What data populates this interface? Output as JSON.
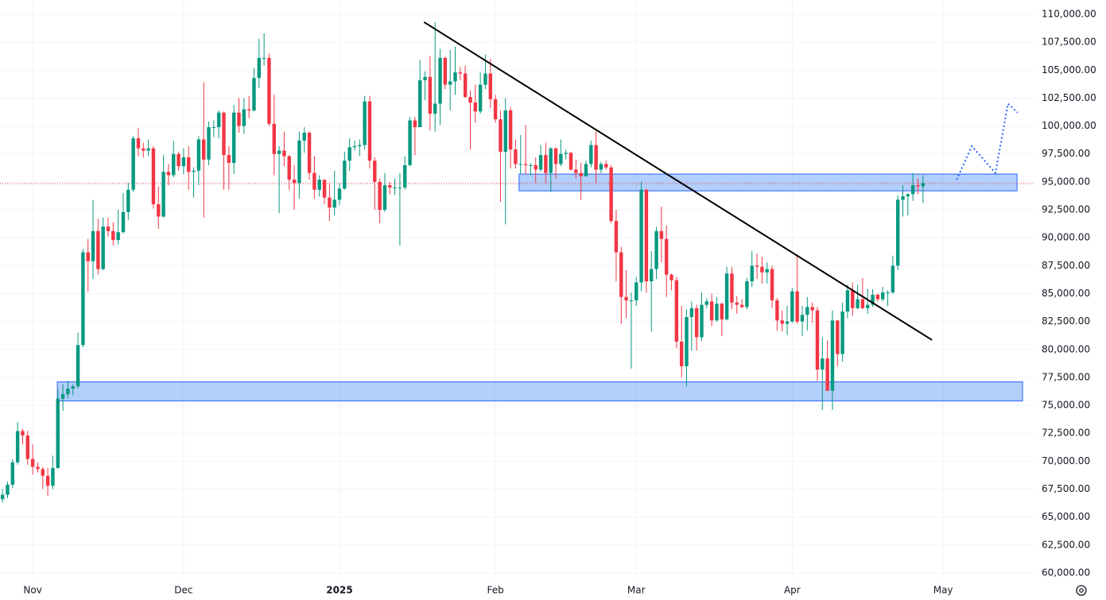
{
  "chart_data": {
    "type": "candlestick",
    "up_color": "#089981",
    "down_color": "#f23645",
    "xlim": [
      -0.5,
      205
    ],
    "ylim": [
      59500,
      111280
    ],
    "grid": true,
    "xticks": [
      {
        "value": 6,
        "label": "Nov"
      },
      {
        "value": 36,
        "label": "Dec"
      },
      {
        "value": 67,
        "label": "2025"
      },
      {
        "value": 98,
        "label": "Feb"
      },
      {
        "value": 126,
        "label": "Mar"
      },
      {
        "value": 157,
        "label": "Apr"
      },
      {
        "value": 187,
        "label": "May"
      }
    ],
    "yticks": [
      {
        "value": 60000,
        "label": "60,000.00"
      },
      {
        "value": 62500,
        "label": "62,500.00"
      },
      {
        "value": 65000,
        "label": "65,000.00"
      },
      {
        "value": 67500,
        "label": "67,500.00"
      },
      {
        "value": 70000,
        "label": "70,000.00"
      },
      {
        "value": 72500,
        "label": "72,500.00"
      },
      {
        "value": 75000,
        "label": "75,000.00"
      },
      {
        "value": 77500,
        "label": "77,500.00"
      },
      {
        "value": 80000,
        "label": "80,000.00"
      },
      {
        "value": 82500,
        "label": "82,500.00"
      },
      {
        "value": 85000,
        "label": "85,000.00"
      },
      {
        "value": 87500,
        "label": "87,500.00"
      },
      {
        "value": 90000,
        "label": "90,000.00"
      },
      {
        "value": 92500,
        "label": "92,500.00"
      },
      {
        "value": 95000,
        "label": "95,000.00"
      },
      {
        "value": 97500,
        "label": "97,500.00"
      },
      {
        "value": 100000,
        "label": "100,000.00"
      },
      {
        "value": 102500,
        "label": "102,500.00"
      },
      {
        "value": 105000,
        "label": "105,000.00"
      },
      {
        "value": 107500,
        "label": "107,500.00"
      },
      {
        "value": 110000,
        "label": "110,000.00"
      }
    ],
    "ohlc": [
      [
        66600,
        67500,
        66300,
        67000
      ],
      [
        67000,
        68200,
        66700,
        67900
      ],
      [
        67900,
        70200,
        67600,
        69900
      ],
      [
        69900,
        73500,
        69700,
        72700
      ],
      [
        72700,
        72900,
        71500,
        72300
      ],
      [
        72300,
        72700,
        69700,
        70200
      ],
      [
        70200,
        71500,
        68800,
        69500
      ],
      [
        69500,
        69900,
        69000,
        69300
      ],
      [
        69300,
        69500,
        67500,
        68700
      ],
      [
        68700,
        69400,
        66900,
        67800
      ],
      [
        67800,
        70500,
        67500,
        69400
      ],
      [
        69400,
        76400,
        69300,
        75600
      ],
      [
        75600,
        76900,
        74500,
        76000
      ],
      [
        76000,
        77200,
        75600,
        76500
      ],
      [
        76500,
        76900,
        75900,
        76700
      ],
      [
        76700,
        81500,
        76500,
        80400
      ],
      [
        80400,
        89000,
        80200,
        88700
      ],
      [
        88700,
        89900,
        85200,
        87900
      ],
      [
        87900,
        93400,
        86300,
        90600
      ],
      [
        90600,
        91700,
        86700,
        87200
      ],
      [
        87200,
        91800,
        87100,
        91000
      ],
      [
        91000,
        91800,
        90100,
        90600
      ],
      [
        90600,
        91400,
        89300,
        89800
      ],
      [
        89800,
        92500,
        89400,
        90500
      ],
      [
        90500,
        94000,
        90400,
        92300
      ],
      [
        92300,
        94900,
        91600,
        94300
      ],
      [
        94300,
        99100,
        94100,
        98900
      ],
      [
        98900,
        99800,
        97300,
        98000
      ],
      [
        98000,
        98500,
        97200,
        97800
      ],
      [
        97800,
        98800,
        97300,
        98000
      ],
      [
        98000,
        98200,
        92600,
        93000
      ],
      [
        93000,
        94600,
        90800,
        91900
      ],
      [
        91900,
        97400,
        91800,
        95900
      ],
      [
        95900,
        96600,
        94700,
        95600
      ],
      [
        95600,
        98700,
        95400,
        97500
      ],
      [
        97500,
        97700,
        96000,
        96400
      ],
      [
        96400,
        98000,
        95700,
        97200
      ],
      [
        97200,
        98200,
        94300,
        95900
      ],
      [
        95900,
        96300,
        93600,
        96000
      ],
      [
        96000,
        99100,
        94700,
        98800
      ],
      [
        98800,
        103900,
        91800,
        97000
      ],
      [
        97000,
        100400,
        96500,
        99900
      ],
      [
        99900,
        100500,
        99000,
        99900
      ],
      [
        99900,
        101400,
        98900,
        101200
      ],
      [
        101200,
        101300,
        94300,
        97400
      ],
      [
        97400,
        98200,
        94300,
        96700
      ],
      [
        96700,
        101900,
        95700,
        101200
      ],
      [
        101200,
        102500,
        99400,
        100000
      ],
      [
        100000,
        102500,
        99300,
        101500
      ],
      [
        101500,
        102700,
        100700,
        101400
      ],
      [
        101400,
        105200,
        101300,
        104300
      ],
      [
        104300,
        107800,
        103400,
        106100
      ],
      [
        106100,
        108300,
        105400,
        106100
      ],
      [
        106100,
        106500,
        100000,
        100200
      ],
      [
        100200,
        102800,
        95600,
        97500
      ],
      [
        97500,
        98200,
        92200,
        97800
      ],
      [
        97800,
        99500,
        96400,
        97300
      ],
      [
        97300,
        97400,
        94300,
        95200
      ],
      [
        95200,
        96500,
        92500,
        94900
      ],
      [
        94900,
        99500,
        93500,
        98700
      ],
      [
        98700,
        99900,
        97600,
        99400
      ],
      [
        99400,
        99500,
        95200,
        95800
      ],
      [
        95800,
        97300,
        93500,
        94300
      ],
      [
        94300,
        95600,
        93700,
        95200
      ],
      [
        95200,
        95200,
        93000,
        93600
      ],
      [
        93600,
        94900,
        91500,
        92700
      ],
      [
        92700,
        96000,
        92000,
        93400
      ],
      [
        93400,
        94900,
        92900,
        94400
      ],
      [
        94400,
        97700,
        94300,
        96900
      ],
      [
        96900,
        98900,
        96000,
        98100
      ],
      [
        98100,
        98700,
        97800,
        98200
      ],
      [
        98200,
        98800,
        97300,
        98300
      ],
      [
        98300,
        102700,
        97900,
        102200
      ],
      [
        102200,
        102700,
        96200,
        96900
      ],
      [
        96900,
        97200,
        92500,
        95000
      ],
      [
        95000,
        95300,
        91300,
        92500
      ],
      [
        92500,
        95800,
        92300,
        94700
      ],
      [
        94700,
        95000,
        93900,
        94500
      ],
      [
        94500,
        95300,
        93800,
        94500
      ],
      [
        94500,
        95800,
        89300,
        94500
      ],
      [
        94500,
        97300,
        94300,
        96500
      ],
      [
        96500,
        100800,
        96400,
        100500
      ],
      [
        100500,
        100800,
        97400,
        99900
      ],
      [
        99900,
        105900,
        99900,
        104100
      ],
      [
        104100,
        104900,
        102300,
        104400
      ],
      [
        104400,
        106300,
        99600,
        101100
      ],
      [
        101100,
        109300,
        99500,
        102000
      ],
      [
        102000,
        106900,
        100100,
        106100
      ],
      [
        106100,
        106200,
        103300,
        103700
      ],
      [
        103700,
        106800,
        101400,
        104000
      ],
      [
        104000,
        107100,
        102800,
        104800
      ],
      [
        104800,
        105300,
        104100,
        104700
      ],
      [
        104700,
        105400,
        102500,
        102600
      ],
      [
        102600,
        103200,
        97900,
        102100
      ],
      [
        102100,
        103700,
        100300,
        101300
      ],
      [
        101300,
        104800,
        101100,
        103700
      ],
      [
        103700,
        106400,
        103300,
        104700
      ],
      [
        104700,
        106000,
        101600,
        102400
      ],
      [
        102400,
        102800,
        100300,
        100600
      ],
      [
        100600,
        101400,
        93200,
        97700
      ],
      [
        97700,
        102500,
        91200,
        101400
      ],
      [
        101400,
        101700,
        96200,
        97900
      ],
      [
        97900,
        98800,
        96200,
        96600
      ],
      [
        96600,
        99200,
        95700,
        96600
      ],
      [
        96600,
        100100,
        95700,
        96500
      ],
      [
        96500,
        96700,
        95600,
        96500
      ],
      [
        96500,
        97200,
        94900,
        96100
      ],
      [
        96100,
        98300,
        95900,
        97400
      ],
      [
        97400,
        98500,
        94900,
        95800
      ],
      [
        95800,
        98100,
        94100,
        98000
      ],
      [
        98000,
        98100,
        95300,
        96600
      ],
      [
        96600,
        98800,
        96400,
        97500
      ],
      [
        97500,
        97900,
        97000,
        97600
      ],
      [
        97600,
        97700,
        96000,
        96100
      ],
      [
        96100,
        97000,
        95300,
        95800
      ],
      [
        95800,
        96700,
        93400,
        95500
      ],
      [
        95500,
        96900,
        95500,
        96600
      ],
      [
        96600,
        98700,
        96300,
        98300
      ],
      [
        98300,
        99500,
        94900,
        96100
      ],
      [
        96100,
        96800,
        95800,
        96600
      ],
      [
        96600,
        96900,
        96100,
        96300
      ],
      [
        96300,
        96500,
        91300,
        91500
      ],
      [
        91500,
        92500,
        86100,
        88700
      ],
      [
        88700,
        89200,
        82300,
        84700
      ],
      [
        84700,
        87100,
        82800,
        84400
      ],
      [
        84400,
        85100,
        78300,
        84400
      ],
      [
        84400,
        86500,
        83900,
        86000
      ],
      [
        86000,
        95000,
        85200,
        94300
      ],
      [
        94300,
        94400,
        85100,
        86100
      ],
      [
        86100,
        88800,
        81600,
        87200
      ],
      [
        87200,
        91000,
        86300,
        90600
      ],
      [
        90600,
        92800,
        87800,
        89900
      ],
      [
        89900,
        91100,
        84700,
        86700
      ],
      [
        86700,
        86800,
        85300,
        86200
      ],
      [
        86200,
        86500,
        80100,
        80700
      ],
      [
        80700,
        83900,
        77500,
        78500
      ],
      [
        78500,
        83600,
        76700,
        82900
      ],
      [
        82900,
        84300,
        79900,
        83700
      ],
      [
        83700,
        84000,
        79900,
        81100
      ],
      [
        81100,
        85100,
        80800,
        84000
      ],
      [
        84000,
        84600,
        83700,
        84300
      ],
      [
        84300,
        85000,
        82100,
        82600
      ],
      [
        82600,
        84700,
        82500,
        84100
      ],
      [
        84100,
        84200,
        81200,
        82700
      ],
      [
        82700,
        87400,
        82600,
        86800
      ],
      [
        86800,
        87400,
        83600,
        84200
      ],
      [
        84200,
        84800,
        83200,
        84000
      ],
      [
        84000,
        84500,
        83700,
        83800
      ],
      [
        83800,
        86400,
        83600,
        86100
      ],
      [
        86100,
        88800,
        85600,
        87500
      ],
      [
        87500,
        88600,
        86300,
        87400
      ],
      [
        87400,
        88300,
        85900,
        86900
      ],
      [
        86900,
        87800,
        85900,
        87200
      ],
      [
        87200,
        87500,
        83700,
        84400
      ],
      [
        84400,
        84600,
        81700,
        82600
      ],
      [
        82600,
        83500,
        81600,
        82300
      ],
      [
        82300,
        83900,
        81300,
        82500
      ],
      [
        82500,
        85500,
        82400,
        85200
      ],
      [
        85200,
        88500,
        82300,
        82500
      ],
      [
        82500,
        83900,
        81200,
        83100
      ],
      [
        83100,
        84700,
        81700,
        83800
      ],
      [
        83800,
        84200,
        82400,
        83500
      ],
      [
        83500,
        83800,
        77200,
        78200
      ],
      [
        78200,
        81100,
        74600,
        79200
      ],
      [
        79200,
        80800,
        76300,
        76300
      ],
      [
        76300,
        83500,
        74600,
        82600
      ],
      [
        82600,
        82600,
        78500,
        79600
      ],
      [
        79600,
        84200,
        78900,
        83400
      ],
      [
        83400,
        85800,
        82800,
        85300
      ],
      [
        85300,
        86000,
        83000,
        83700
      ],
      [
        83700,
        85800,
        83600,
        84500
      ],
      [
        84500,
        86400,
        83600,
        83700
      ],
      [
        83700,
        85400,
        83200,
        84000
      ],
      [
        84000,
        85400,
        83800,
        84900
      ],
      [
        84900,
        85000,
        84300,
        84500
      ],
      [
        84500,
        85600,
        84300,
        85100
      ],
      [
        85100,
        85300,
        83900,
        85100
      ],
      [
        85100,
        88400,
        85000,
        87500
      ],
      [
        87500,
        93800,
        87100,
        93400
      ],
      [
        93400,
        94700,
        91900,
        93700
      ],
      [
        93700,
        94000,
        92000,
        93900
      ],
      [
        93900,
        95800,
        93300,
        94700
      ],
      [
        94700,
        95300,
        93900,
        94600
      ],
      [
        94600,
        95600,
        93100,
        94900
      ]
    ],
    "zones": [
      {
        "x": [
          102.7,
          201.7
        ],
        "y": [
          94200,
          95700
        ]
      },
      {
        "x": [
          10.9,
          202.8
        ],
        "y": [
          75400,
          77100
        ]
      }
    ],
    "trendline": {
      "x": [
        83.8,
        184.8
      ],
      "y": [
        109300,
        80850
      ]
    },
    "projection": {
      "x": [
        189.7,
        192.7,
        197.4,
        199.9,
        201.8
      ],
      "y": [
        95200,
        98200,
        95800,
        102000,
        101200
      ]
    },
    "last_price": 94850
  }
}
